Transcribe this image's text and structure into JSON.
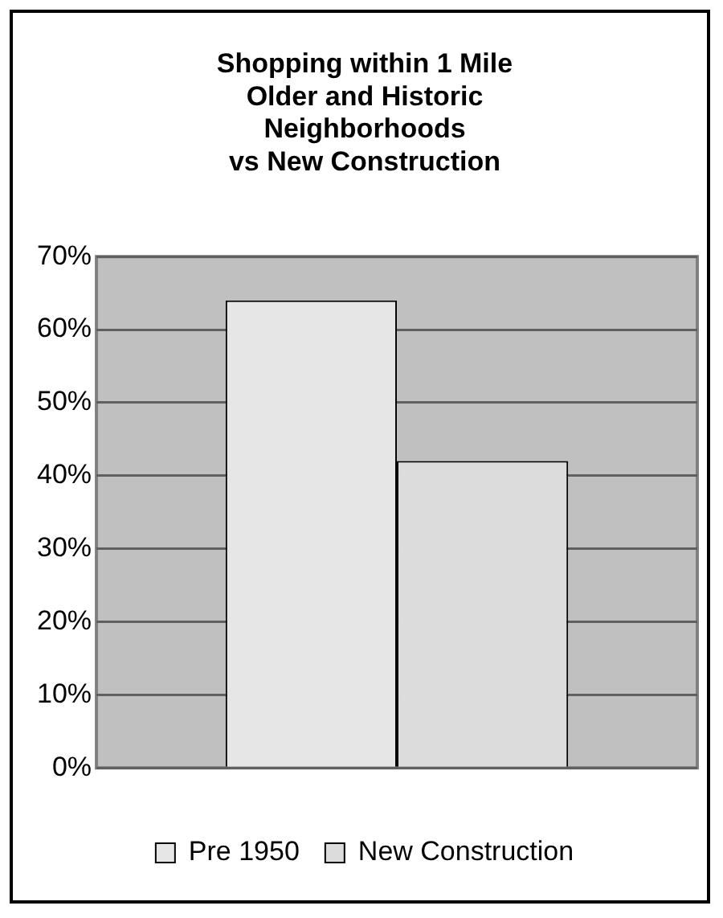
{
  "chart_data": {
    "type": "bar",
    "title": "Shopping within 1 Mile\nOlder and Historic\nNeighborhoods\nvs New Construction",
    "categories": [
      null
    ],
    "series": [
      {
        "name": "Pre 1950",
        "color": "#e6e6e6",
        "values": [
          64
        ]
      },
      {
        "name": "New Construction",
        "color": "#dcdcdc",
        "values": [
          42
        ]
      }
    ],
    "ylim": [
      0,
      70
    ],
    "yticks": [
      {
        "value": 0,
        "label": "0%"
      },
      {
        "value": 10,
        "label": "10%"
      },
      {
        "value": 20,
        "label": "20%"
      },
      {
        "value": 30,
        "label": "30%"
      },
      {
        "value": 40,
        "label": "40%"
      },
      {
        "value": 50,
        "label": "50%"
      },
      {
        "value": 60,
        "label": "60%"
      },
      {
        "value": 70,
        "label": "70%"
      }
    ],
    "grid": "y",
    "legend": "bottom"
  }
}
